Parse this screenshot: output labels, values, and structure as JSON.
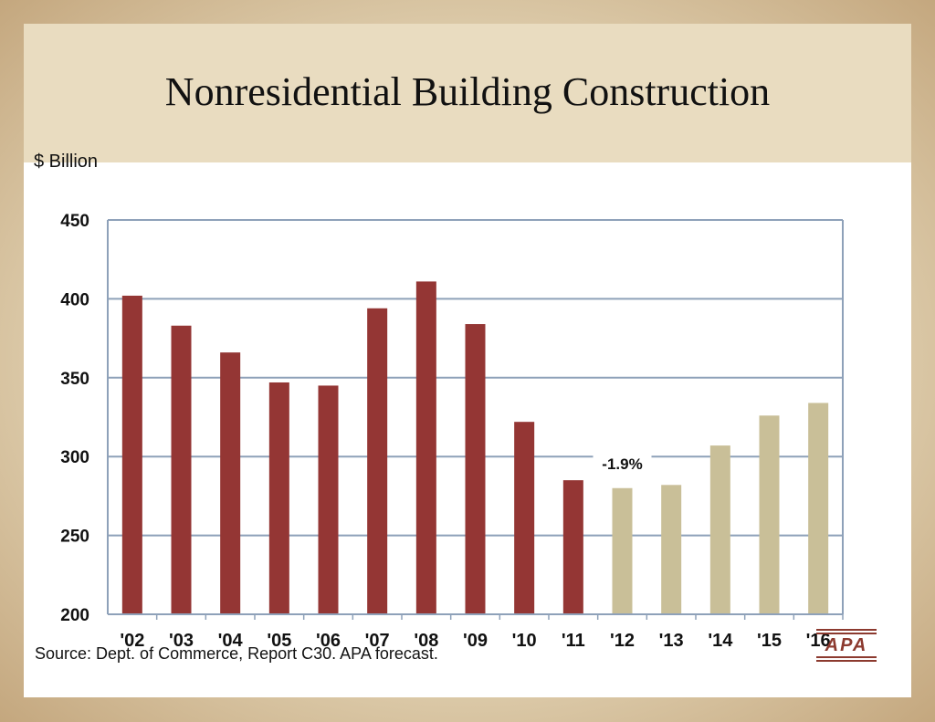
{
  "slide": {
    "title": "Nonresidential Building Construction",
    "source": "Source:  Dept. of Commerce, Report C30.  APA forecast.",
    "logo_text": "APA"
  },
  "chart_data": {
    "type": "bar",
    "title": "",
    "ylabel": "$ Billion",
    "xlabel": "",
    "ylim": [
      200,
      450
    ],
    "yticks": [
      200,
      250,
      300,
      350,
      400,
      450
    ],
    "grid": true,
    "categories": [
      "'02",
      "'03",
      "'04",
      "'05",
      "'06",
      "'07",
      "'08",
      "'09",
      "'10",
      "'11",
      "'12",
      "'13",
      "'14",
      "'15",
      "'16"
    ],
    "values": [
      402,
      383,
      366,
      347,
      345,
      394,
      411,
      384,
      322,
      285,
      280,
      282,
      307,
      326,
      334
    ],
    "colors": [
      "#943634",
      "#943634",
      "#943634",
      "#943634",
      "#943634",
      "#943634",
      "#943634",
      "#943634",
      "#943634",
      "#943634",
      "#c9bf98",
      "#c9bf98",
      "#c9bf98",
      "#c9bf98",
      "#c9bf98"
    ],
    "annotation": {
      "text": "-1.9%",
      "category": "'12"
    }
  }
}
